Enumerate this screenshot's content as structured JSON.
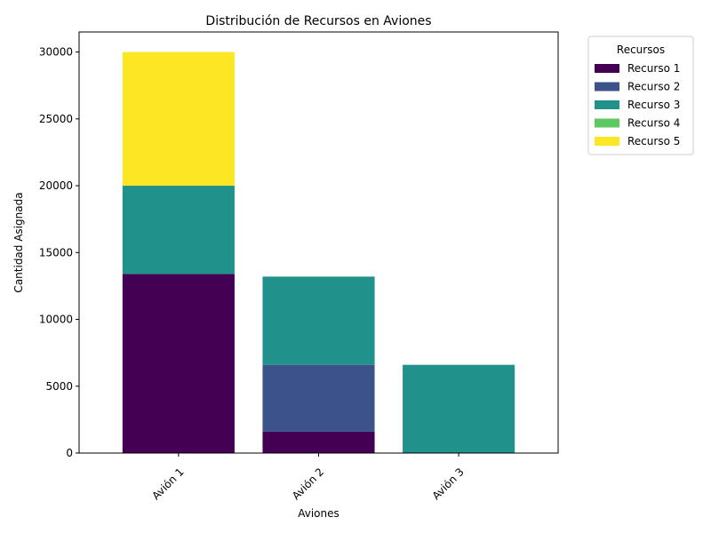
{
  "chart_data": {
    "type": "bar",
    "stacked": true,
    "title": "Distribución de Recursos en Aviones",
    "xlabel": "Aviones",
    "ylabel": "Cantidad Asignada",
    "categories": [
      "Avión 1",
      "Avión 2",
      "Avión 3"
    ],
    "ylim": [
      0,
      31500
    ],
    "yticks": [
      0,
      5000,
      10000,
      15000,
      20000,
      25000,
      30000
    ],
    "legend": {
      "title": "Recursos",
      "position": "outside-top-right"
    },
    "series": [
      {
        "name": "Recurso 1",
        "color": "#440154",
        "values": [
          13400,
          1600,
          0
        ]
      },
      {
        "name": "Recurso 2",
        "color": "#3b528b",
        "values": [
          0,
          5000,
          0
        ]
      },
      {
        "name": "Recurso 3",
        "color": "#21918c",
        "values": [
          6600,
          6600,
          6600
        ]
      },
      {
        "name": "Recurso 4",
        "color": "#5ec962",
        "values": [
          0,
          0,
          0
        ]
      },
      {
        "name": "Recurso 5",
        "color": "#fde725",
        "values": [
          10000,
          0,
          0
        ]
      }
    ]
  }
}
